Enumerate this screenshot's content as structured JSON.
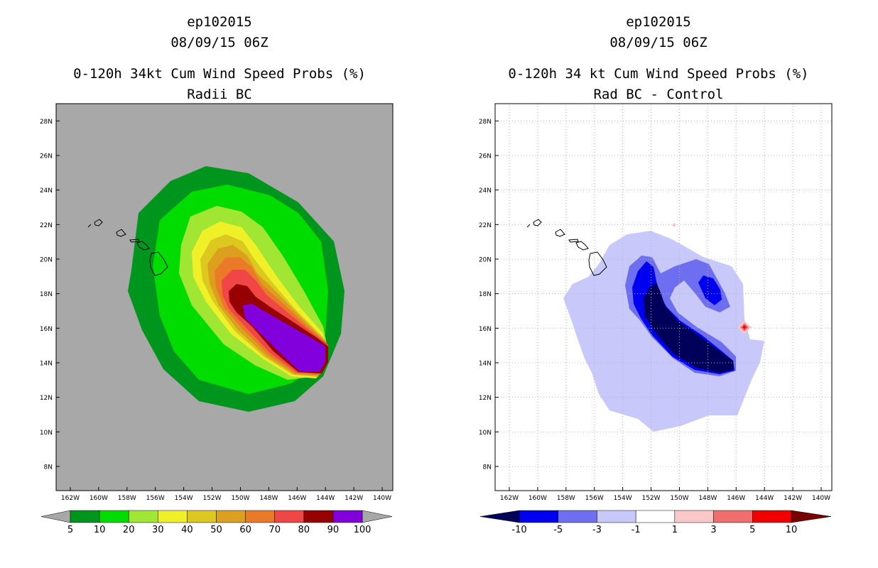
{
  "left": {
    "title1": "ep102015",
    "title2": "08/09/15 06Z",
    "title3": "0-120h 34kt Cum Wind Speed Probs (%)",
    "title4": "Radii BC",
    "background": "#a8a8a8",
    "colorbar": {
      "colors": [
        "#00961e",
        "#00dc00",
        "#a0e632",
        "#f0f028",
        "#dcc81e",
        "#dca01e",
        "#ea7a28",
        "#f04646",
        "#960000",
        "#8200dc"
      ],
      "labels": [
        "5",
        "10",
        "20",
        "30",
        "40",
        "50",
        "60",
        "70",
        "80",
        "90",
        "100"
      ],
      "end_arrow_color": "#a8a8a8"
    }
  },
  "right": {
    "title1": "ep102015",
    "title2": "08/09/15 06Z",
    "title3": "0-120h 34 kt Cum Wind Speed Probs (%)",
    "title4": "Rad BC - Control",
    "background": "#ffffff",
    "colorbar": {
      "colors": [
        "#00005a",
        "#0000f0",
        "#6e6ef0",
        "#c8c8fa",
        "#ffffff",
        "#fac8c8",
        "#f06e6e",
        "#f00000",
        "#780000"
      ],
      "labels": [
        "-10",
        "-5",
        "-3",
        "-1",
        "1",
        "3",
        "5",
        "10"
      ]
    }
  },
  "axes": {
    "lat_labels": [
      "28N",
      "26N",
      "24N",
      "22N",
      "20N",
      "18N",
      "16N",
      "14N",
      "12N",
      "10N",
      "8N"
    ],
    "lat_values": [
      28,
      26,
      24,
      22,
      20,
      18,
      16,
      14,
      12,
      10,
      8
    ],
    "lon_labels": [
      "162W",
      "160W",
      "158W",
      "156W",
      "154W",
      "152W",
      "150W",
      "148W",
      "146W",
      "144W",
      "142W",
      "140W"
    ],
    "lon_values": [
      -162,
      -160,
      -158,
      -156,
      -154,
      -152,
      -150,
      -148,
      -146,
      -144,
      -142,
      -140
    ],
    "lon_range": [
      -163,
      -139.25
    ],
    "lat_range": [
      6.6,
      29
    ]
  },
  "colors": {
    "frame": "#000000",
    "grid": "#b4b4b4",
    "coast": "#000000"
  }
}
